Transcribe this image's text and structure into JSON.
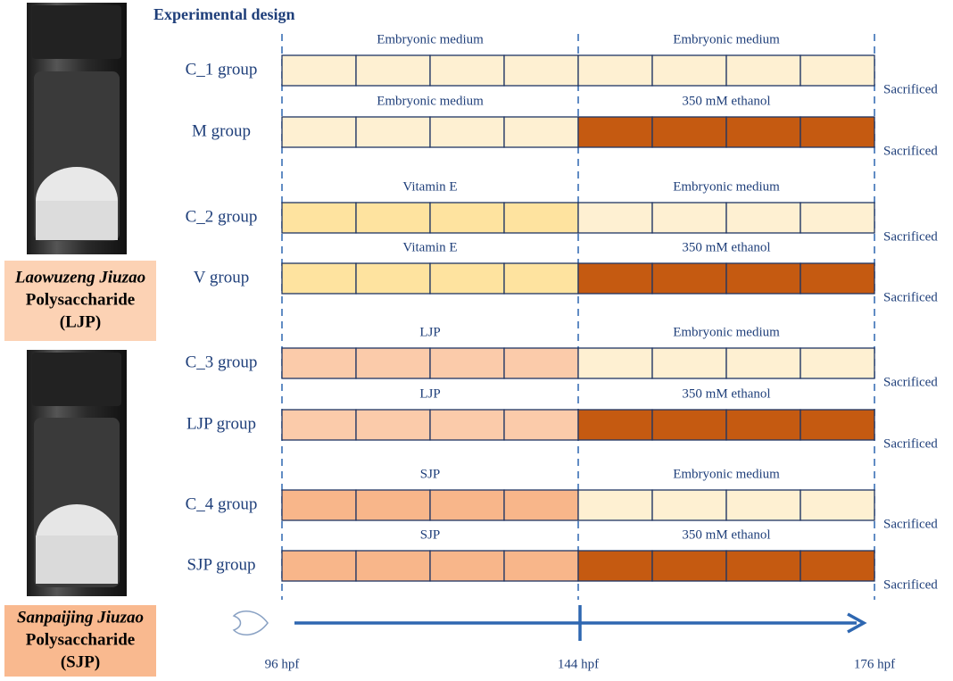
{
  "title": "Experimental design",
  "products": [
    {
      "name": "Laowuzeng Jiuzao",
      "kind": "Polysaccharide",
      "abbr": "(LJP)",
      "color": "#fcd2b4"
    },
    {
      "name": "Sanpaijing Jiuzao",
      "kind": "Polysaccharide",
      "abbr": "(SJP)",
      "color": "#f9b98f"
    }
  ],
  "groups": [
    {
      "name": "C_1 group",
      "phases": [
        {
          "label": "Embryonic medium",
          "color": "#fef0d2"
        },
        {
          "label": "Embryonic medium",
          "color": "#fef0d2"
        }
      ],
      "end": "Sacrificed"
    },
    {
      "name": "M group",
      "phases": [
        {
          "label": "Embryonic medium",
          "color": "#fef0d2"
        },
        {
          "label": "350 mM ethanol",
          "color": "#c55a11"
        }
      ],
      "end": "Sacrificed"
    },
    {
      "name": "C_2 group",
      "phases": [
        {
          "label": "Vitamin E",
          "color": "#fee39f"
        },
        {
          "label": "Embryonic medium",
          "color": "#fef0d2"
        }
      ],
      "end": "Sacrificed"
    },
    {
      "name": "V group",
      "phases": [
        {
          "label": "Vitamin E",
          "color": "#fee39f"
        },
        {
          "label": "350 mM ethanol",
          "color": "#c55a11"
        }
      ],
      "end": "Sacrificed"
    },
    {
      "name": "C_3 group",
      "phases": [
        {
          "label": "LJP",
          "color": "#fbcbaa"
        },
        {
          "label": "Embryonic medium",
          "color": "#fef0d2"
        }
      ],
      "end": "Sacrificed"
    },
    {
      "name": "LJP group",
      "phases": [
        {
          "label": "LJP",
          "color": "#fbcbaa"
        },
        {
          "label": "350 mM ethanol",
          "color": "#c55a11"
        }
      ],
      "end": "Sacrificed"
    },
    {
      "name": "C_4 group",
      "phases": [
        {
          "label": "SJP",
          "color": "#f8b68a"
        },
        {
          "label": "Embryonic medium",
          "color": "#fef0d2"
        }
      ],
      "end": "Sacrificed"
    },
    {
      "name": "SJP group",
      "phases": [
        {
          "label": "SJP",
          "color": "#f8b68a"
        },
        {
          "label": "350 mM ethanol",
          "color": "#c55a11"
        }
      ],
      "end": "Sacrificed"
    }
  ],
  "timeline": [
    "96 hpf",
    "144 hpf",
    "176 hpf"
  ]
}
